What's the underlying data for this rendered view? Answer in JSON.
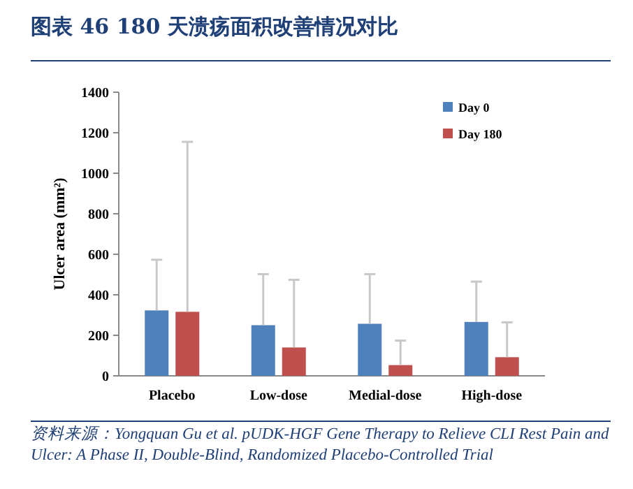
{
  "chart_data": {
    "type": "bar",
    "title": "图表 46  180 天溃疡面积改善情况对比",
    "ylabel": "Ulcer area (mm²)",
    "categories": [
      "Placebo",
      "Low-dose",
      "Medial-dose",
      "High-dose"
    ],
    "series": [
      {
        "name": "Day 0",
        "color": "#4f81bd",
        "values": [
          323,
          250,
          257,
          266
        ],
        "errors": [
          [
            323,
            573
          ],
          [
            250,
            502
          ],
          [
            257,
            502
          ],
          [
            266,
            465
          ]
        ]
      },
      {
        "name": "Day 180",
        "color": "#c0504d",
        "values": [
          316,
          140,
          53,
          92
        ],
        "errors": [
          [
            316,
            1155
          ],
          [
            140,
            474
          ],
          [
            53,
            174
          ],
          [
            92,
            264
          ]
        ]
      }
    ],
    "ylim": [
      0,
      1400
    ],
    "yticks": [
      0,
      200,
      400,
      600,
      800,
      1000,
      1200,
      1400
    ],
    "legend": "top right",
    "annotations": [
      "资料来源：Yongquan Gu  et al. pUDK-HGF Gene Therapy to Relieve CLI Rest Pain and Ulcer: A Phase II, Double-Blind, Randomized Placebo-Controlled Trial"
    ]
  }
}
